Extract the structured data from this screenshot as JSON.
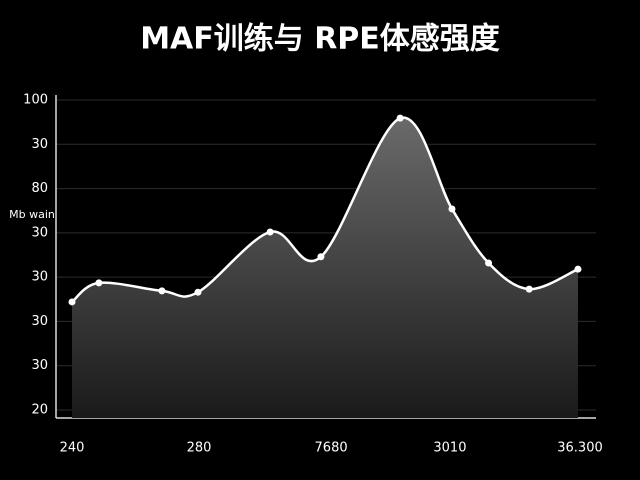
{
  "chart_data": {
    "type": "area",
    "title": "MAF训练与 RPE体感强度",
    "ylabel": "Mb wain",
    "x": [
      0,
      5.3,
      17.7,
      24.8,
      39,
      49,
      64.6,
      74.8,
      82,
      90,
      99.6
    ],
    "values": [
      44.4,
      48.7,
      46.9,
      46.6,
      60.2,
      54.6,
      85.9,
      65.4,
      53.2,
      47.3,
      51.8
    ],
    "color": "#ffffff",
    "xlim": [
      0,
      100
    ],
    "xticks": [
      {
        "value": 0,
        "label": "240"
      },
      {
        "value": 25,
        "label": "280"
      },
      {
        "value": 51,
        "label": "7680"
      },
      {
        "value": 74.4,
        "label": "3010"
      },
      {
        "value": 100,
        "label": "36.300"
      }
    ],
    "ylim": [
      20,
      90
    ],
    "yticks": [
      {
        "value": 90,
        "label": "100"
      },
      {
        "value": 80,
        "label": "30"
      },
      {
        "value": 70,
        "label": "80"
      },
      {
        "value": 60,
        "label": "30"
      },
      {
        "value": 50,
        "label": "30"
      },
      {
        "value": 40,
        "label": "30"
      },
      {
        "value": 30,
        "label": "30"
      },
      20
    ],
    "grid": true
  }
}
